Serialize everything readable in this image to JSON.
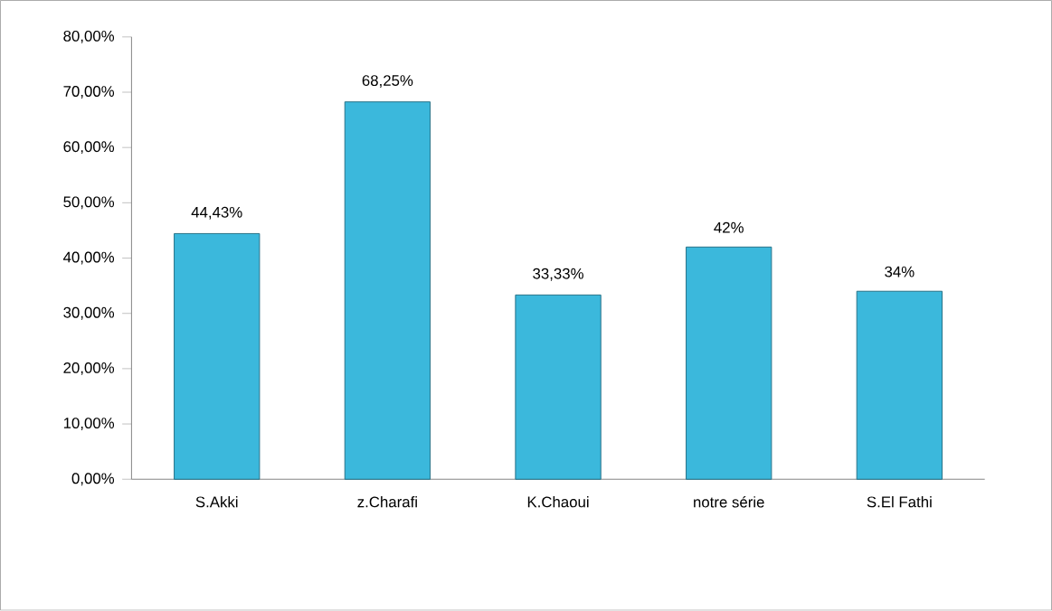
{
  "chart_data": {
    "type": "bar",
    "categories": [
      "S.Akki",
      "z.Charafi",
      "K.Chaoui",
      "notre série",
      "S.El Fathi"
    ],
    "series": [
      {
        "color": "#3bb8dc",
        "values": [
          44.43,
          68.25,
          33.33,
          42,
          34
        ],
        "value_labels": [
          "44,43%",
          "68,25%",
          "33,33%",
          "42%",
          "34%"
        ]
      }
    ],
    "ylim": [
      0,
      80
    ],
    "yticks": [
      {
        "value": 0,
        "label": "0,00%"
      },
      {
        "value": 10,
        "label": "10,00%"
      },
      {
        "value": 20,
        "label": "20,00%"
      },
      {
        "value": 30,
        "label": "30,00%"
      },
      {
        "value": 40,
        "label": "40,00%"
      },
      {
        "value": 50,
        "label": "50,00%"
      },
      {
        "value": 60,
        "label": "60,00%"
      },
      {
        "value": 70,
        "label": "70,00%"
      },
      {
        "value": 80,
        "label": "80,00%"
      }
    ],
    "grid": false
  }
}
